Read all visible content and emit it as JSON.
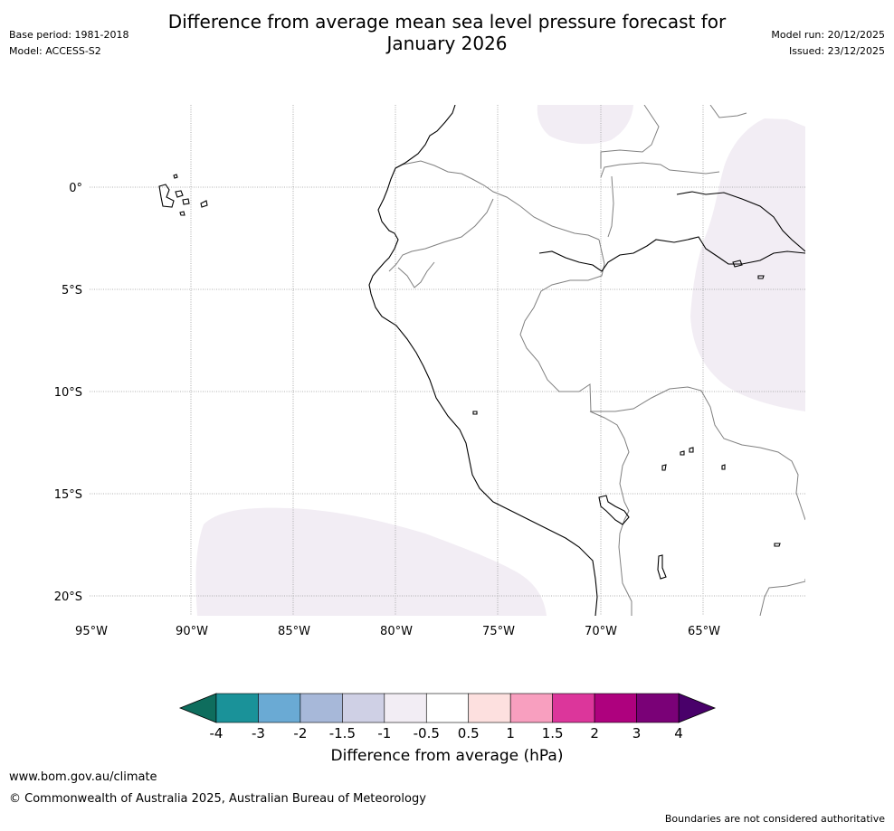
{
  "header": {
    "title_line1": "Difference from average mean sea level pressure forecast for",
    "title_line2": "January 2026",
    "base_period": "Base period: 1981-2018",
    "model": "Model: ACCESS-S2",
    "model_run": "Model run: 20/12/2025",
    "issued": "Issued: 23/12/2025"
  },
  "map": {
    "lat_labels": [
      "0°",
      "5°S",
      "10°S",
      "15°S",
      "20°S"
    ],
    "lon_labels": [
      "95°W",
      "90°W",
      "85°W",
      "80°W",
      "75°W",
      "70°W",
      "65°W"
    ],
    "anomaly_fill_color": "#f2edf4",
    "coast_color": "#000000",
    "border_color": "#808080",
    "grid_color": "#999999"
  },
  "colorbar": {
    "title": "Difference from average (hPa)",
    "tick_labels": [
      "-4",
      "-3",
      "-2",
      "-1.5",
      "-1",
      "-0.5",
      "0.5",
      "1",
      "1.5",
      "2",
      "3",
      "4"
    ],
    "colors": [
      "#0e6d5d",
      "#1a9299",
      "#6aaad4",
      "#a7b8d9",
      "#cfd0e5",
      "#f2edf4",
      "#ffffff",
      "#fde0df",
      "#f89fbf",
      "#dc369b",
      "#ae017e",
      "#7a0177",
      "#49006a"
    ]
  },
  "footer": {
    "website": "www.bom.gov.au/climate",
    "copyright": "© Commonwealth of Australia 2025, Australian Bureau of Meteorology",
    "disclaimer": "Boundaries are not considered authoritative"
  }
}
